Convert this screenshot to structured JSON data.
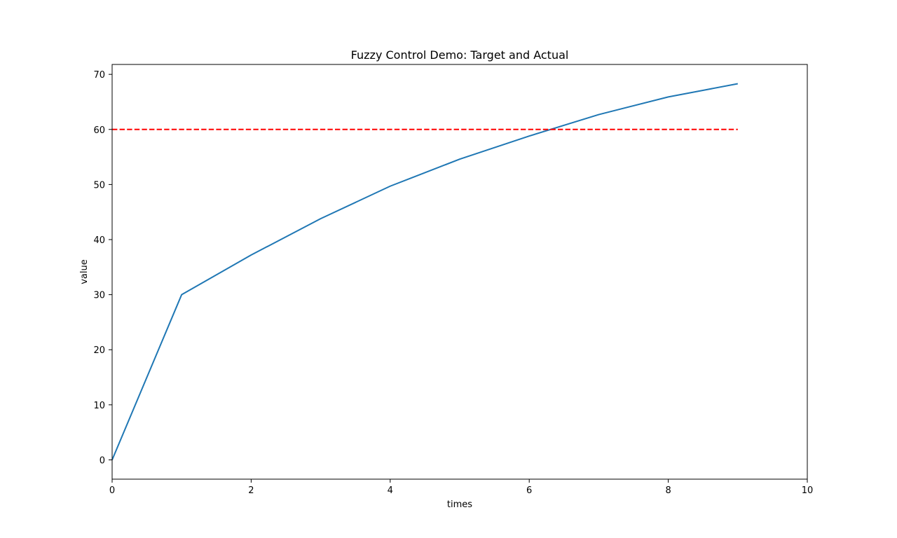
{
  "chart_data": {
    "type": "line",
    "title": "Fuzzy Control Demo: Target and Actual",
    "xlabel": "times",
    "ylabel": "value",
    "xlim": [
      0,
      10
    ],
    "ylim": [
      -3.5,
      71.8
    ],
    "xticks": [
      0,
      2,
      4,
      6,
      8,
      10
    ],
    "yticks": [
      0,
      10,
      20,
      30,
      40,
      50,
      60,
      70
    ],
    "xtick_labels": [
      "0",
      "2",
      "4",
      "6",
      "8",
      "10"
    ],
    "ytick_labels": [
      "0",
      "10",
      "20",
      "30",
      "40",
      "50",
      "60",
      "70"
    ],
    "grid": false,
    "series": [
      {
        "x": [
          0,
          1,
          2,
          3,
          4,
          5,
          6,
          7,
          8,
          9
        ],
        "values": [
          0,
          30,
          37.2,
          43.8,
          49.7,
          54.6,
          58.8,
          62.7,
          65.9,
          68.3
        ],
        "color": "#1f77b4",
        "style": "solid"
      },
      {
        "x": [
          0,
          9
        ],
        "values": [
          60,
          60
        ],
        "color": "#ff0000",
        "style": "dashed"
      }
    ]
  }
}
